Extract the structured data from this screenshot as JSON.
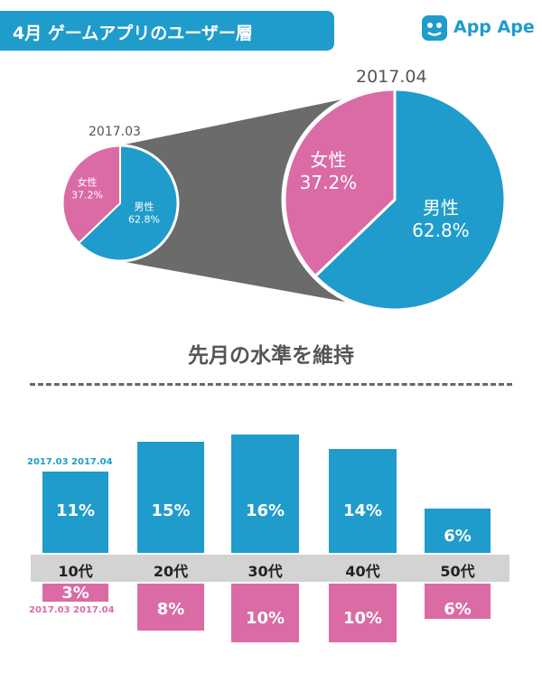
{
  "header": {
    "title": "4月 ゲームアプリのユーザー層"
  },
  "logo": {
    "text": "App Ape",
    "icon": "app-ape-logo-icon",
    "color": "#1f9ccb"
  },
  "colors": {
    "male": "#1f9ccb",
    "female": "#da6ba4",
    "connector": "#6b6b6b",
    "strip": "#d3d3d3"
  },
  "headline": "先月の水準を維持",
  "chart_data": [
    {
      "type": "pie",
      "title": "2017.03",
      "slices": [
        {
          "label": "男性",
          "value": 62.8,
          "text": "62.8%"
        },
        {
          "label": "女性",
          "value": 37.2,
          "text": "37.2%"
        }
      ]
    },
    {
      "type": "pie",
      "title": "2017.04",
      "slices": [
        {
          "label": "男性",
          "value": 62.8,
          "text": "62.8%"
        },
        {
          "label": "女性",
          "value": 37.2,
          "text": "37.2%"
        }
      ]
    },
    {
      "type": "bar",
      "categories": [
        "10代",
        "20代",
        "30代",
        "40代",
        "50代"
      ],
      "series": [
        {
          "name": "2017.03 2017.04",
          "position": "above",
          "values": [
            11,
            15,
            16,
            14,
            6
          ],
          "labels": [
            "11%",
            "15%",
            "16%",
            "14%",
            "6%"
          ]
        },
        {
          "name": "2017.03 2017.04",
          "position": "below",
          "values": [
            3,
            8,
            10,
            10,
            6
          ],
          "labels": [
            "3%",
            "8%",
            "10%",
            "10%",
            "6%"
          ]
        }
      ]
    }
  ]
}
